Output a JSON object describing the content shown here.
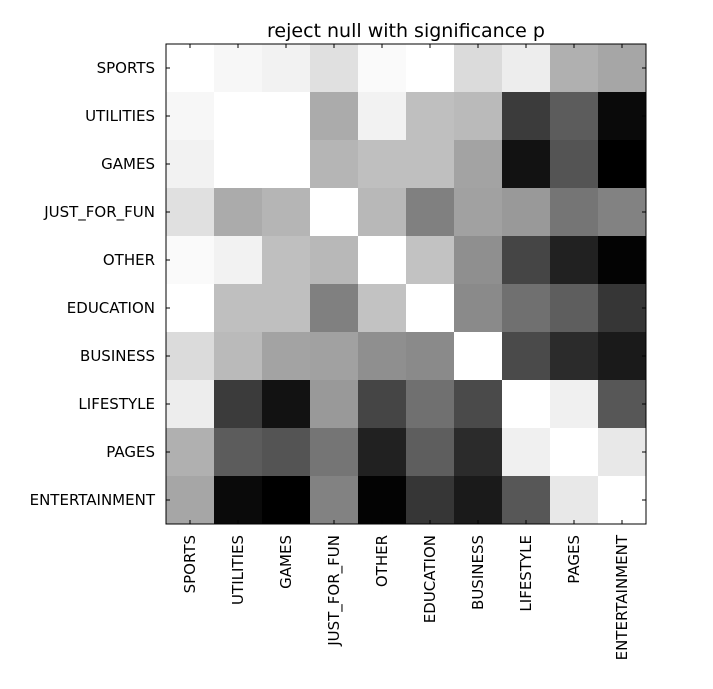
{
  "chart_data": {
    "type": "heatmap",
    "title": "reject null with significance p",
    "xlabel": "",
    "ylabel": "",
    "colormap": "gray",
    "value_range": [
      0,
      1
    ],
    "grid": false,
    "legend": "none",
    "categories_x": [
      "SPORTS",
      "UTILITIES",
      "GAMES",
      "JUST_FOR_FUN",
      "OTHER",
      "EDUCATION",
      "BUSINESS",
      "LIFESTYLE",
      "PAGES",
      "ENTERTAINMENT"
    ],
    "categories_y": [
      "SPORTS",
      "UTILITIES",
      "GAMES",
      "JUST_FOR_FUN",
      "OTHER",
      "EDUCATION",
      "BUSINESS",
      "LIFESTYLE",
      "PAGES",
      "ENTERTAINMENT"
    ],
    "values": [
      [
        1.0,
        0.97,
        0.95,
        0.88,
        0.98,
        1.0,
        0.86,
        0.93,
        0.69,
        0.65
      ],
      [
        0.97,
        1.0,
        1.0,
        0.67,
        0.95,
        0.75,
        0.73,
        0.23,
        0.36,
        0.04
      ],
      [
        0.95,
        1.0,
        1.0,
        0.71,
        0.75,
        0.75,
        0.64,
        0.07,
        0.33,
        0.0
      ],
      [
        0.88,
        0.67,
        0.71,
        1.0,
        0.72,
        0.5,
        0.63,
        0.6,
        0.46,
        0.51
      ],
      [
        0.98,
        0.95,
        0.75,
        0.72,
        1.0,
        0.76,
        0.56,
        0.27,
        0.13,
        0.01
      ],
      [
        1.0,
        0.75,
        0.75,
        0.5,
        0.76,
        1.0,
        0.54,
        0.44,
        0.37,
        0.21
      ],
      [
        0.86,
        0.73,
        0.64,
        0.63,
        0.56,
        0.54,
        1.0,
        0.29,
        0.17,
        0.1
      ],
      [
        0.93,
        0.23,
        0.07,
        0.6,
        0.27,
        0.44,
        0.29,
        1.0,
        0.94,
        0.34
      ],
      [
        0.69,
        0.36,
        0.33,
        0.46,
        0.13,
        0.37,
        0.17,
        0.94,
        1.0,
        0.91
      ],
      [
        0.65,
        0.04,
        0.0,
        0.51,
        0.01,
        0.21,
        0.1,
        0.34,
        0.91,
        1.0
      ]
    ]
  }
}
